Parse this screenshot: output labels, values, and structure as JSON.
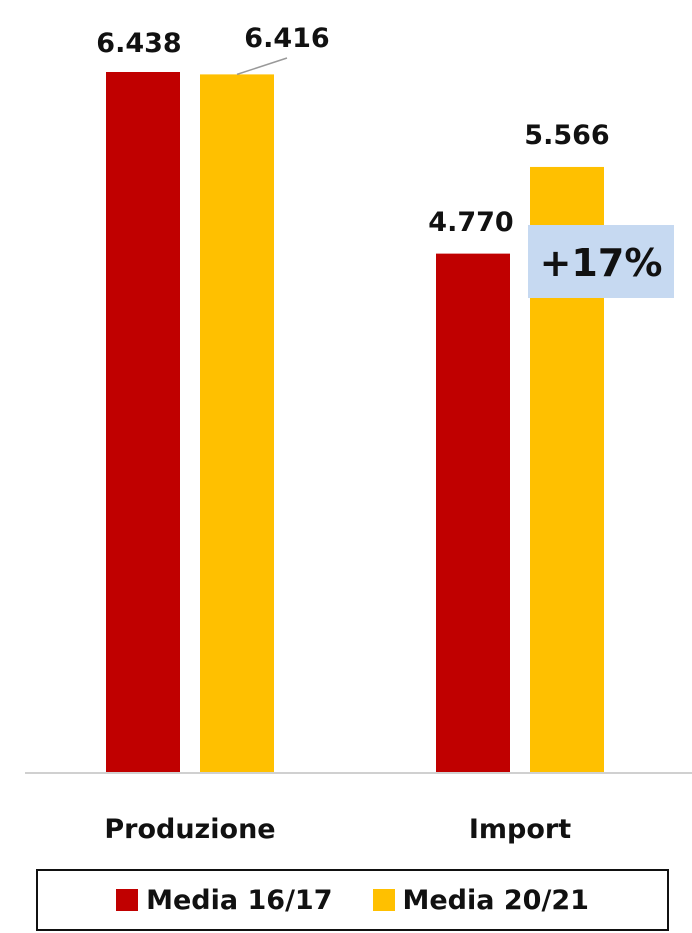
{
  "chart_data": {
    "type": "bar",
    "categories": [
      "Produzione",
      "Import"
    ],
    "series": [
      {
        "name": "Media 16/17",
        "values": [
          6438,
          4770
        ],
        "labels": [
          "6.438",
          "4.770"
        ],
        "color": "#C00000"
      },
      {
        "name": "Media 20/21",
        "values": [
          6416,
          5566
        ],
        "labels": [
          "6.416",
          "5.566"
        ],
        "color": "#FFC000"
      }
    ],
    "annotation": {
      "text": "+17%",
      "category": "Import",
      "color": "#C6D9F1"
    },
    "grid": false,
    "legend": "bottom",
    "title": "",
    "xlabel": "",
    "ylabel": ""
  }
}
